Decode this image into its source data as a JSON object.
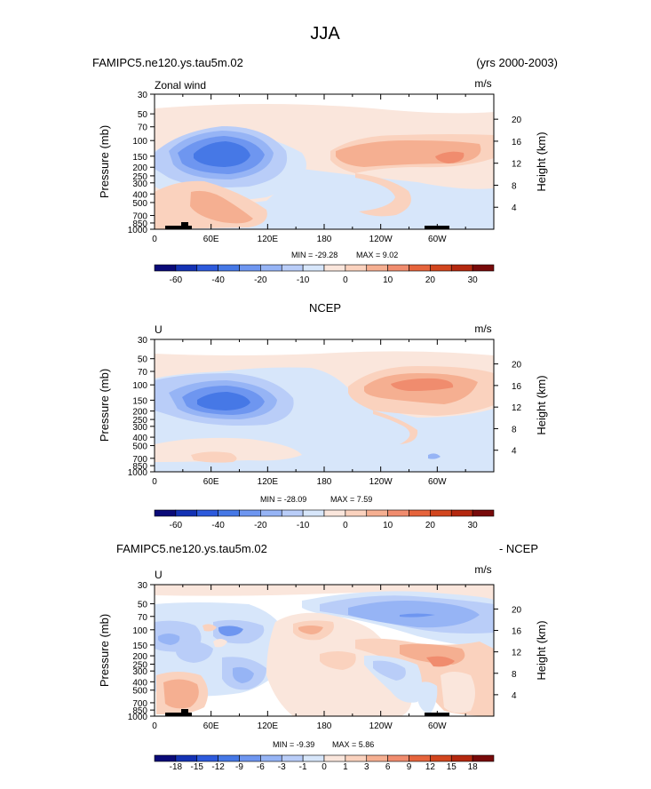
{
  "page_title": "JJA",
  "chart_data": [
    {
      "type": "heatmap",
      "title_left": "FAMIPC5.ne120.ys.tau5m.02",
      "title_right": "(yrs 2000-2003)",
      "subtitle": "Zonal wind",
      "units": "m/s",
      "ylabel_left": "Pressure (mb)",
      "ylabel_right": "Height (km)",
      "x_ticks": [
        "0",
        "60E",
        "120E",
        "180",
        "120W",
        "60W"
      ],
      "y_ticks": [
        "30",
        "50",
        "70",
        "100",
        "150",
        "200",
        "250",
        "300",
        "400",
        "500",
        "700",
        "850",
        "1000"
      ],
      "height_ticks": [
        "20",
        "16",
        "12",
        "8",
        "4"
      ],
      "min_label": "MIN = -29.28",
      "max_label": "MAX = 9.02",
      "min": -29.28,
      "max": 9.02,
      "colorbar_labels": [
        "-60",
        "-40",
        "-20",
        "-10",
        "0",
        "10",
        "20",
        "30"
      ],
      "colorbar_levels": [
        -70,
        -60,
        -50,
        -40,
        -30,
        -20,
        -15,
        -10,
        -5,
        0,
        5,
        10,
        15,
        20,
        25,
        30,
        35
      ]
    },
    {
      "type": "heatmap",
      "title_center": "NCEP",
      "subtitle": "U",
      "units": "m/s",
      "ylabel_left": "Pressure (mb)",
      "ylabel_right": "Height (km)",
      "x_ticks": [
        "0",
        "60E",
        "120E",
        "180",
        "120W",
        "60W"
      ],
      "y_ticks": [
        "30",
        "50",
        "70",
        "100",
        "150",
        "200",
        "250",
        "300",
        "400",
        "500",
        "700",
        "850",
        "1000"
      ],
      "height_ticks": [
        "20",
        "16",
        "12",
        "8",
        "4"
      ],
      "min_label": "MIN = -28.09",
      "max_label": "MAX = 7.59",
      "min": -28.09,
      "max": 7.59,
      "colorbar_labels": [
        "-60",
        "-40",
        "-20",
        "-10",
        "0",
        "10",
        "20",
        "30"
      ],
      "colorbar_levels": [
        -70,
        -60,
        -50,
        -40,
        -30,
        -20,
        -15,
        -10,
        -5,
        0,
        5,
        10,
        15,
        20,
        25,
        30,
        35
      ]
    },
    {
      "type": "heatmap",
      "title_left": "FAMIPC5.ne120.ys.tau5m.02",
      "title_right": "- NCEP",
      "subtitle": "U",
      "units": "m/s",
      "ylabel_left": "Pressure (mb)",
      "ylabel_right": "Height (km)",
      "x_ticks": [
        "0",
        "60E",
        "120E",
        "180",
        "120W",
        "60W"
      ],
      "y_ticks": [
        "30",
        "50",
        "70",
        "100",
        "150",
        "200",
        "250",
        "300",
        "400",
        "500",
        "700",
        "850",
        "1000"
      ],
      "height_ticks": [
        "20",
        "16",
        "12",
        "8",
        "4"
      ],
      "min_label": "MIN = -9.39",
      "max_label": "MAX = 5.86",
      "min": -9.39,
      "max": 5.86,
      "colorbar_labels": [
        "-18",
        "-15",
        "-12",
        "-9",
        "-6",
        "-3",
        "-1",
        "0",
        "1",
        "3",
        "6",
        "9",
        "12",
        "15",
        "18"
      ],
      "colorbar_levels": [
        -21,
        -18,
        -15,
        -12,
        -9,
        -6,
        -3,
        -1,
        0,
        1,
        3,
        6,
        9,
        12,
        15,
        18,
        21
      ]
    }
  ],
  "palette": [
    "#0a0a78",
    "#1432b4",
    "#2d5adc",
    "#4678e6",
    "#6e96f0",
    "#96b4f5",
    "#b9cdf8",
    "#d7e6fa",
    "#fae6dc",
    "#fad2be",
    "#f5af91",
    "#f08c6e",
    "#e6643c",
    "#d2461e",
    "#b4280f",
    "#780a0a"
  ]
}
